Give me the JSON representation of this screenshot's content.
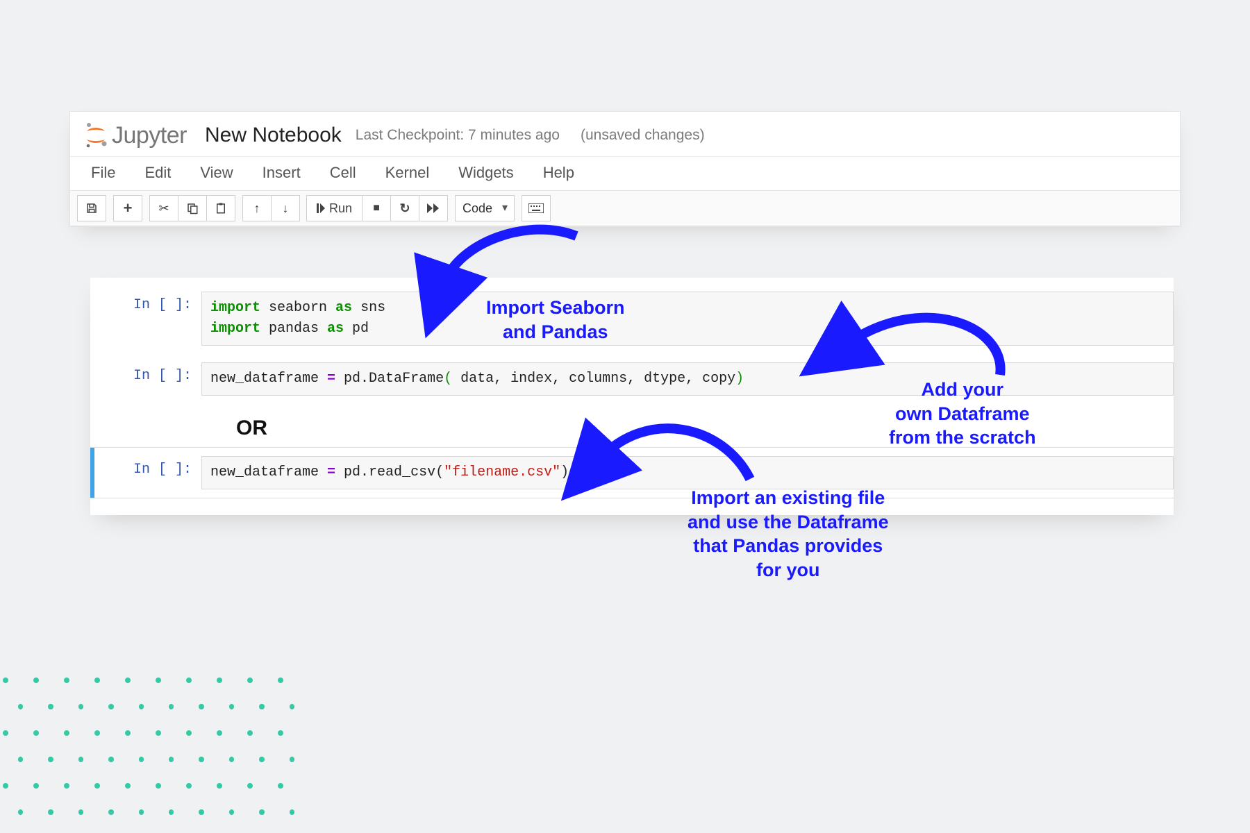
{
  "colors": {
    "page_bg": "#f0f1f2",
    "panel_bg": "#ffffff",
    "border": "#e3e3e3",
    "toolbar_bg": "#fafafa",
    "button_border": "#cfcfcf",
    "annotation": "#1a1aff",
    "jupyter_orange": "#f37726",
    "prompt_blue": "#2f54b3",
    "syntax_green": "#0a8f00",
    "syntax_purple": "#8b00d6",
    "syntax_red": "#c41a16",
    "active_cell_bar": "#3ea4e6",
    "dot": "#36c9a5"
  },
  "header": {
    "logo_text": "Jupyter",
    "title": "New Notebook",
    "checkpoint": "Last Checkpoint: 7 minutes ago",
    "unsaved": "(unsaved changes)"
  },
  "menu": {
    "items": [
      "File",
      "Edit",
      "View",
      "Insert",
      "Cell",
      "Kernel",
      "Widgets",
      "Help"
    ]
  },
  "toolbar": {
    "run_label": "Run",
    "celltype": "Code"
  },
  "cells": {
    "prompt": "In [ ]:",
    "c1_line1_pre": "import",
    "c1_line1_mid": " seaborn ",
    "c1_line1_as": "as",
    "c1_line1_post": " sns",
    "c1_line2_pre": "import",
    "c1_line2_mid": " pandas ",
    "c1_line2_as": "as",
    "c1_line2_post": " pd",
    "c2_code_a": "new_dataframe ",
    "c2_code_eq": "=",
    "c2_code_b": " pd.DataFrame",
    "c2_code_paren_open": "(",
    "c2_code_args": " data, index, columns, dtype, copy",
    "c2_code_paren_close": ")",
    "or": "OR",
    "c3_code_a": "new_dataframe ",
    "c3_code_eq": "=",
    "c3_code_b": " pd.read_csv(",
    "c3_code_str": "\"filename.csv\"",
    "c3_code_c": ")"
  },
  "annotations": {
    "a1_l1": "Import Seaborn",
    "a1_l2": "and Pandas",
    "a2_l1": "Add your",
    "a2_l2": "own Dataframe",
    "a2_l3": "from the scratch",
    "a3_l1": "Import an existing file",
    "a3_l2": "and use the Dataframe",
    "a3_l3": "that Pandas provides",
    "a3_l4": "for you"
  },
  "dots": {
    "rows": 6,
    "cols": 10
  }
}
